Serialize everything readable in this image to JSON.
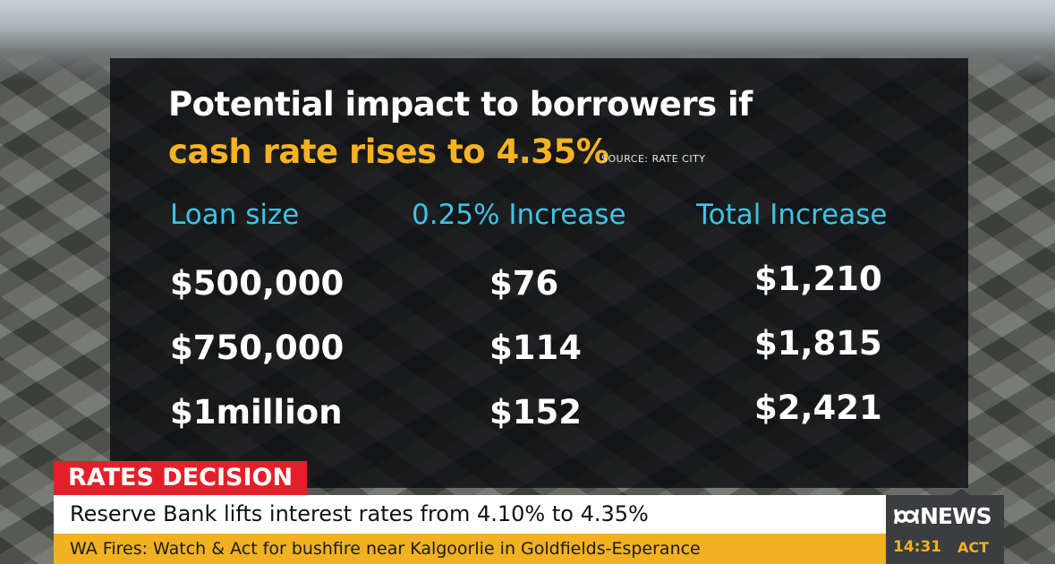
{
  "panel": {
    "title_line1": "Potential impact to borrowers if",
    "title_line2": "cash rate rises to 4.35%",
    "source": "SOURCE: RATE CITY"
  },
  "table": {
    "headers": [
      "Loan size",
      "0.25% Increase",
      "Total Increase"
    ],
    "rows": [
      [
        "$500,000",
        "$76",
        "$1,210"
      ],
      [
        "$750,000",
        "$114",
        "$1,815"
      ],
      [
        "$1million",
        "$152",
        "$2,421"
      ]
    ]
  },
  "ticker": {
    "label": "RATES DECISION",
    "headline": "Reserve Bank lifts interest rates from 4.10% to 4.35%",
    "crawl": "WA Fires: Watch & Act for bushfire near Kalgoorlie in Goldfields-Esperance"
  },
  "branding": {
    "logo_text": "NEWS",
    "time": "14:31",
    "location": "ACT"
  }
}
